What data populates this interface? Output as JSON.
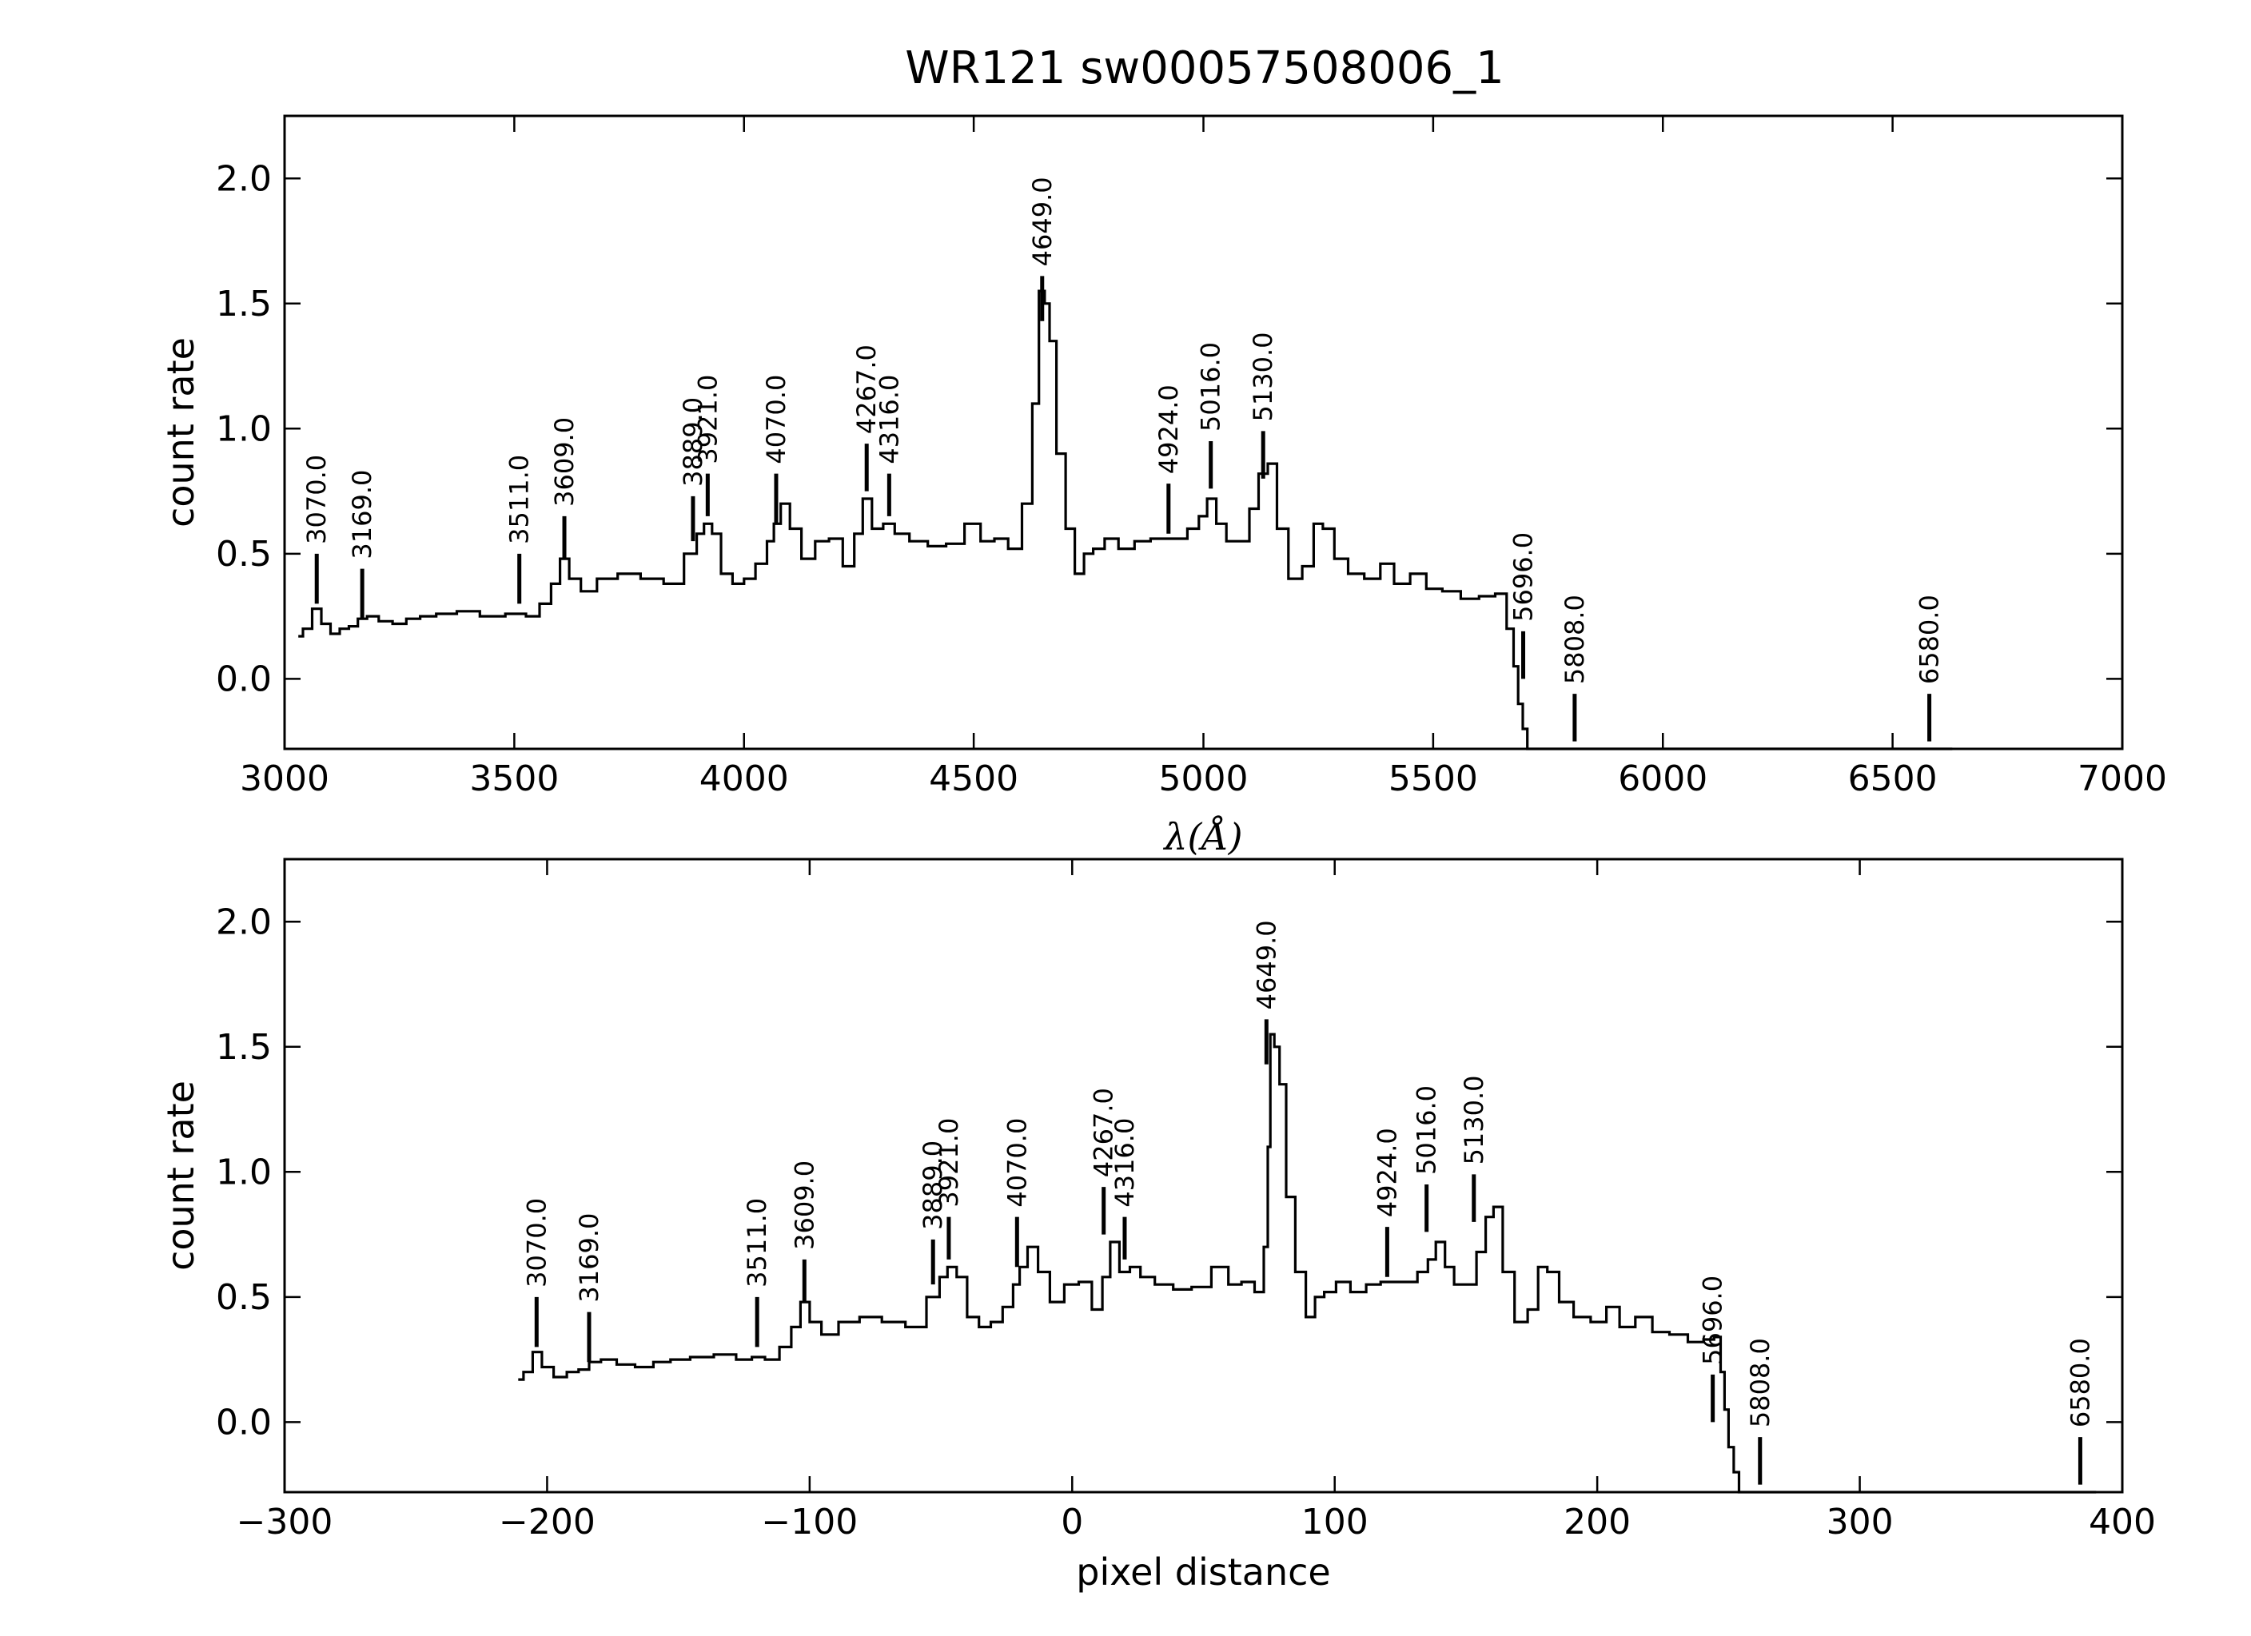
{
  "figure": {
    "title": "WR121  sw00057508006_1"
  },
  "chart_data": [
    {
      "type": "line",
      "panel": "top",
      "xlabel": "λ(Å)",
      "ylabel": "count rate",
      "xlim": [
        3000,
        7000
      ],
      "ylim": [
        -0.28,
        2.25
      ],
      "xticks": [
        3000,
        3500,
        4000,
        4500,
        5000,
        5500,
        6000,
        6500,
        7000
      ],
      "xtick_labels": [
        "3000",
        "3500",
        "4000",
        "4500",
        "5000",
        "5500",
        "6000",
        "6500",
        "7000"
      ],
      "yticks": [
        0.0,
        0.5,
        1.0,
        1.5,
        2.0
      ],
      "ytick_labels": [
        "0.0",
        "0.5",
        "1.0",
        "1.5",
        "2.0"
      ],
      "series": [
        {
          "x": [
            3030,
            3050,
            3070,
            3090,
            3110,
            3130,
            3150,
            3169,
            3190,
            3220,
            3250,
            3280,
            3310,
            3350,
            3400,
            3450,
            3511,
            3540,
            3570,
            3590,
            3609,
            3630,
            3660,
            3700,
            3750,
            3800,
            3850,
            3889,
            3905,
            3921,
            3940,
            3960,
            3990,
            4010,
            4040,
            4060,
            4070,
            4090,
            4110,
            4140,
            4170,
            4200,
            4230,
            4250,
            4267,
            4290,
            4316,
            4340,
            4380,
            4420,
            4460,
            4500,
            4530,
            4560,
            4590,
            4620,
            4635,
            4649,
            4660,
            4670,
            4690,
            4710,
            4730,
            4750,
            4770,
            4800,
            4830,
            4870,
            4900,
            4924,
            4950,
            4980,
            5000,
            5016,
            5040,
            5060,
            5090,
            5110,
            5130,
            5150,
            5170,
            5200,
            5230,
            5250,
            5270,
            5300,
            5330,
            5370,
            5400,
            5430,
            5470,
            5500,
            5540,
            5580,
            5620,
            5650,
            5670,
            5680,
            5690,
            5700,
            5710,
            6630
          ],
          "y": [
            0.17,
            0.2,
            0.28,
            0.22,
            0.18,
            0.2,
            0.21,
            0.24,
            0.25,
            0.23,
            0.22,
            0.24,
            0.25,
            0.26,
            0.27,
            0.25,
            0.26,
            0.25,
            0.3,
            0.38,
            0.48,
            0.4,
            0.35,
            0.4,
            0.42,
            0.4,
            0.38,
            0.5,
            0.58,
            0.62,
            0.58,
            0.42,
            0.38,
            0.4,
            0.46,
            0.55,
            0.62,
            0.7,
            0.6,
            0.48,
            0.55,
            0.56,
            0.45,
            0.58,
            0.72,
            0.6,
            0.62,
            0.58,
            0.55,
            0.53,
            0.54,
            0.62,
            0.55,
            0.56,
            0.52,
            0.7,
            1.1,
            1.55,
            1.5,
            1.35,
            0.9,
            0.6,
            0.42,
            0.5,
            0.52,
            0.56,
            0.52,
            0.55,
            0.56,
            0.56,
            0.56,
            0.6,
            0.65,
            0.72,
            0.62,
            0.55,
            0.55,
            0.68,
            0.82,
            0.86,
            0.6,
            0.4,
            0.45,
            0.62,
            0.6,
            0.48,
            0.42,
            0.4,
            0.46,
            0.38,
            0.42,
            0.36,
            0.35,
            0.32,
            0.33,
            0.34,
            0.2,
            0.05,
            -0.1,
            -0.2,
            -0.28,
            -0.28
          ]
        }
      ],
      "line_markers": [
        {
          "label": "3070.0",
          "x": 3070,
          "y_bottom": 0.3,
          "y_top": 0.5
        },
        {
          "label": "3169.0",
          "x": 3169,
          "y_bottom": 0.24,
          "y_top": 0.44
        },
        {
          "label": "3511.0",
          "x": 3511,
          "y_bottom": 0.3,
          "y_top": 0.5
        },
        {
          "label": "3609.0",
          "x": 3609,
          "y_bottom": 0.48,
          "y_top": 0.65
        },
        {
          "label": "3889.0",
          "x": 3889,
          "y_bottom": 0.55,
          "y_top": 0.73
        },
        {
          "label": "3921.0",
          "x": 3921,
          "y_bottom": 0.65,
          "y_top": 0.82
        },
        {
          "label": "4070.0",
          "x": 4070,
          "y_bottom": 0.62,
          "y_top": 0.82
        },
        {
          "label": "4267.0",
          "x": 4267,
          "y_bottom": 0.75,
          "y_top": 0.94
        },
        {
          "label": "4316.0",
          "x": 4316,
          "y_bottom": 0.65,
          "y_top": 0.82
        },
        {
          "label": "4649.0",
          "x": 4649,
          "y_bottom": 1.43,
          "y_top": 1.61
        },
        {
          "label": "4924.0",
          "x": 4924,
          "y_bottom": 0.58,
          "y_top": 0.78
        },
        {
          "label": "5016.0",
          "x": 5016,
          "y_bottom": 0.76,
          "y_top": 0.95
        },
        {
          "label": "5130.0",
          "x": 5130,
          "y_bottom": 0.8,
          "y_top": 0.99
        },
        {
          "label": "5696.0",
          "x": 5696,
          "y_bottom": 0.0,
          "y_top": 0.19
        },
        {
          "label": "5808.0",
          "x": 5808,
          "y_bottom": -0.25,
          "y_top": -0.06
        },
        {
          "label": "6580.0",
          "x": 6580,
          "y_bottom": -0.25,
          "y_top": -0.06
        }
      ]
    },
    {
      "type": "line",
      "panel": "bottom",
      "xlabel": "pixel distance",
      "ylabel": "count rate",
      "xlim": [
        -300,
        400
      ],
      "ylim": [
        -0.28,
        2.25
      ],
      "xticks": [
        -300,
        -200,
        -100,
        0,
        100,
        200,
        300,
        400
      ],
      "xtick_labels": [
        "−300",
        "−200",
        "−100",
        "0",
        "100",
        "200",
        "300",
        "400"
      ],
      "yticks": [
        0.0,
        0.5,
        1.0,
        1.5,
        2.0
      ],
      "ytick_labels": [
        "0.0",
        "0.5",
        "1.0",
        "1.5",
        "2.0"
      ],
      "series": [
        {
          "x": [
            -211,
            -207,
            -204,
            -200,
            -195,
            -190,
            -186,
            -182,
            -177,
            -170,
            -163,
            -156,
            -150,
            -141,
            -132,
            -124,
            -120,
            -114,
            -109,
            -105,
            -102,
            -98,
            -93,
            -85,
            -77,
            -68,
            -59,
            -52,
            -49,
            -46,
            -42,
            -38,
            -33,
            -29,
            -24,
            -21,
            -19,
            -15,
            -11,
            -6,
            0,
            5,
            10,
            13,
            16,
            20,
            24,
            28,
            35,
            42,
            49,
            57,
            62,
            67,
            72,
            74,
            75,
            76,
            78,
            80,
            83,
            87,
            91,
            94,
            98,
            103,
            109,
            115,
            120,
            124,
            129,
            134,
            137,
            140,
            144,
            147,
            152,
            156,
            159,
            162,
            166,
            171,
            176,
            179,
            183,
            188,
            194,
            201,
            206,
            211,
            218,
            224,
            231,
            238,
            243,
            246,
            248,
            249,
            251,
            253,
            255,
            390
          ],
          "y": [
            0.17,
            0.2,
            0.28,
            0.22,
            0.18,
            0.2,
            0.21,
            0.24,
            0.25,
            0.23,
            0.22,
            0.24,
            0.25,
            0.26,
            0.27,
            0.25,
            0.26,
            0.25,
            0.3,
            0.38,
            0.48,
            0.4,
            0.35,
            0.4,
            0.42,
            0.4,
            0.38,
            0.5,
            0.58,
            0.62,
            0.58,
            0.42,
            0.38,
            0.4,
            0.46,
            0.55,
            0.62,
            0.7,
            0.6,
            0.48,
            0.55,
            0.56,
            0.45,
            0.58,
            0.72,
            0.6,
            0.62,
            0.58,
            0.55,
            0.53,
            0.54,
            0.62,
            0.55,
            0.56,
            0.52,
            0.7,
            1.1,
            1.55,
            1.5,
            1.35,
            0.9,
            0.6,
            0.42,
            0.5,
            0.52,
            0.56,
            0.52,
            0.55,
            0.56,
            0.56,
            0.56,
            0.6,
            0.65,
            0.72,
            0.62,
            0.55,
            0.55,
            0.68,
            0.82,
            0.86,
            0.6,
            0.4,
            0.45,
            0.62,
            0.6,
            0.48,
            0.42,
            0.4,
            0.46,
            0.38,
            0.42,
            0.36,
            0.35,
            0.32,
            0.33,
            0.34,
            0.2,
            0.05,
            -0.1,
            -0.2,
            -0.28,
            -0.28
          ]
        }
      ],
      "line_markers": [
        {
          "label": "3070.0",
          "x": -204,
          "y_bottom": 0.3,
          "y_top": 0.5
        },
        {
          "label": "3169.0",
          "x": -184,
          "y_bottom": 0.24,
          "y_top": 0.44
        },
        {
          "label": "3511.0",
          "x": -120,
          "y_bottom": 0.3,
          "y_top": 0.5
        },
        {
          "label": "3609.0",
          "x": -102,
          "y_bottom": 0.48,
          "y_top": 0.65
        },
        {
          "label": "3889.0",
          "x": -53,
          "y_bottom": 0.55,
          "y_top": 0.73
        },
        {
          "label": "3921.0",
          "x": -47,
          "y_bottom": 0.65,
          "y_top": 0.82
        },
        {
          "label": "4070.0",
          "x": -21,
          "y_bottom": 0.62,
          "y_top": 0.82
        },
        {
          "label": "4267.0",
          "x": 12,
          "y_bottom": 0.75,
          "y_top": 0.94
        },
        {
          "label": "4316.0",
          "x": 20,
          "y_bottom": 0.65,
          "y_top": 0.82
        },
        {
          "label": "4649.0",
          "x": 74,
          "y_bottom": 1.43,
          "y_top": 1.61
        },
        {
          "label": "4924.0",
          "x": 120,
          "y_bottom": 0.58,
          "y_top": 0.78
        },
        {
          "label": "5016.0",
          "x": 135,
          "y_bottom": 0.76,
          "y_top": 0.95
        },
        {
          "label": "5130.0",
          "x": 153,
          "y_bottom": 0.8,
          "y_top": 0.99
        },
        {
          "label": "5696.0",
          "x": 244,
          "y_bottom": 0.0,
          "y_top": 0.19
        },
        {
          "label": "5808.0",
          "x": 262,
          "y_bottom": -0.25,
          "y_top": -0.06
        },
        {
          "label": "6580.0",
          "x": 384,
          "y_bottom": -0.25,
          "y_top": -0.06
        }
      ]
    }
  ]
}
